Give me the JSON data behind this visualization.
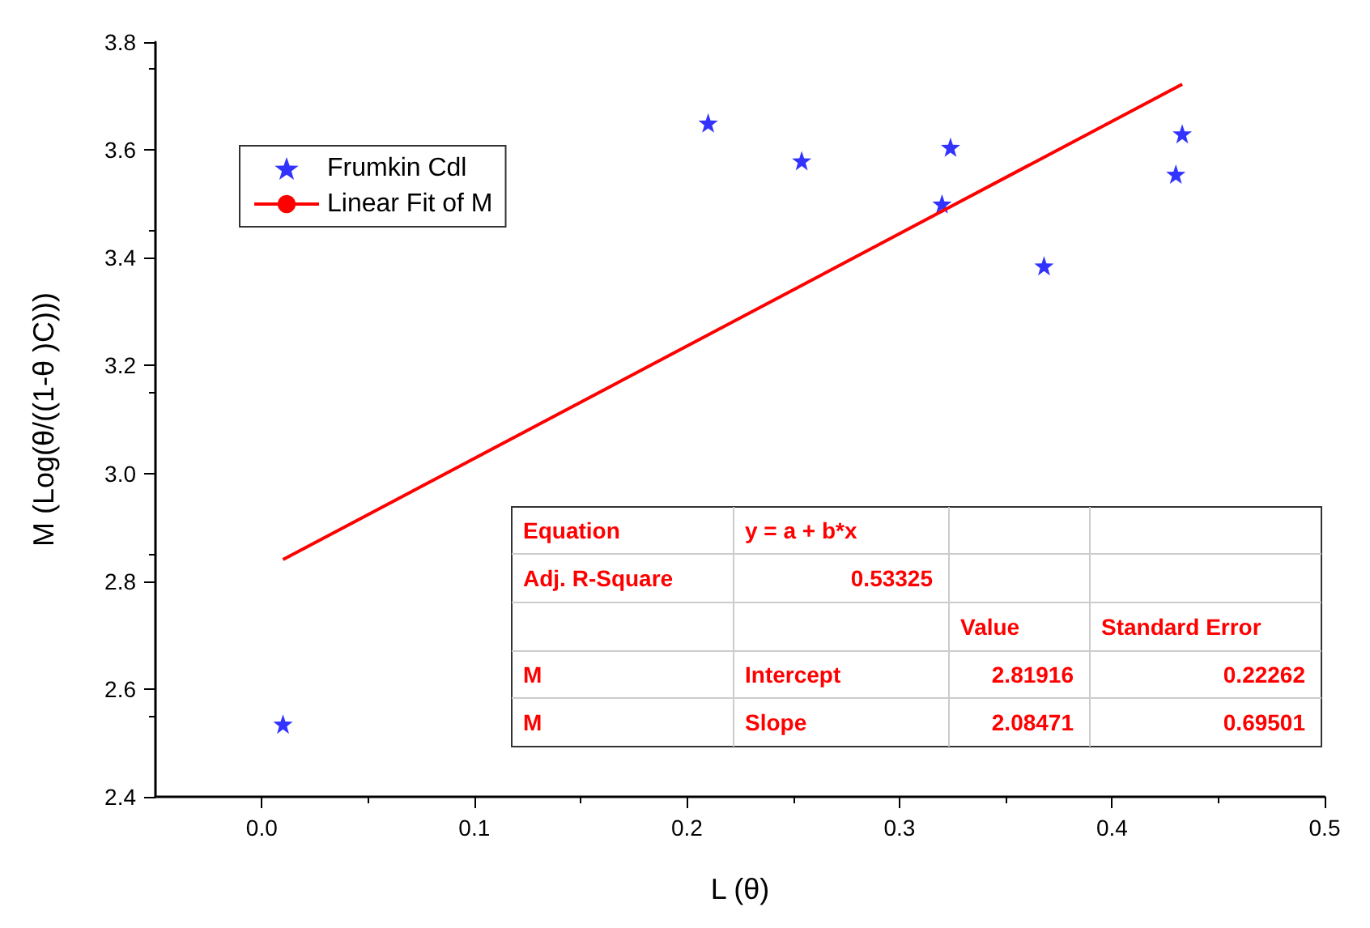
{
  "chart_data": {
    "type": "scatter",
    "xlabel": "L (θ)",
    "ylabel": "M (Log(θ/((1-θ )C)))",
    "xlim": [
      -0.05,
      0.5
    ],
    "xticks": [
      {
        "value": 0,
        "label": "0.0"
      },
      0.1,
      0.2,
      0.3,
      0.4,
      0.5
    ],
    "ylim": [
      2.4,
      3.8
    ],
    "yticks": [
      2.4,
      2.6,
      2.8,
      {
        "value": 3,
        "label": "3.0"
      },
      3.2,
      3.4,
      3.6,
      3.8
    ],
    "grid": false,
    "legend": "top left",
    "marker": "star",
    "series": [
      {
        "name": "Frumkin Cdl",
        "color": "#0000ff",
        "x": [
          0.01,
          0.21,
          0.254,
          0.32,
          0.324,
          0.368,
          0.43,
          0.433
        ],
        "values": [
          2.535,
          3.65,
          3.58,
          3.5,
          3.605,
          3.385,
          3.555,
          3.63
        ]
      },
      {
        "name": "Linear Fit of M",
        "type": "line",
        "color": "#ff0000",
        "marker": "none",
        "line_style": "solid",
        "x": [
          0.01,
          0.433
        ],
        "values": [
          2.84,
          3.722
        ]
      }
    ],
    "annotations": [
      "Equation",
      "y = a + b*x",
      "Adj. R-Square",
      "0.53325",
      "Value",
      "Standard Error",
      "M",
      "Intercept",
      "2.81916",
      "0.22262",
      "M",
      "Slope",
      "2.08471",
      "0.69501"
    ]
  }
}
